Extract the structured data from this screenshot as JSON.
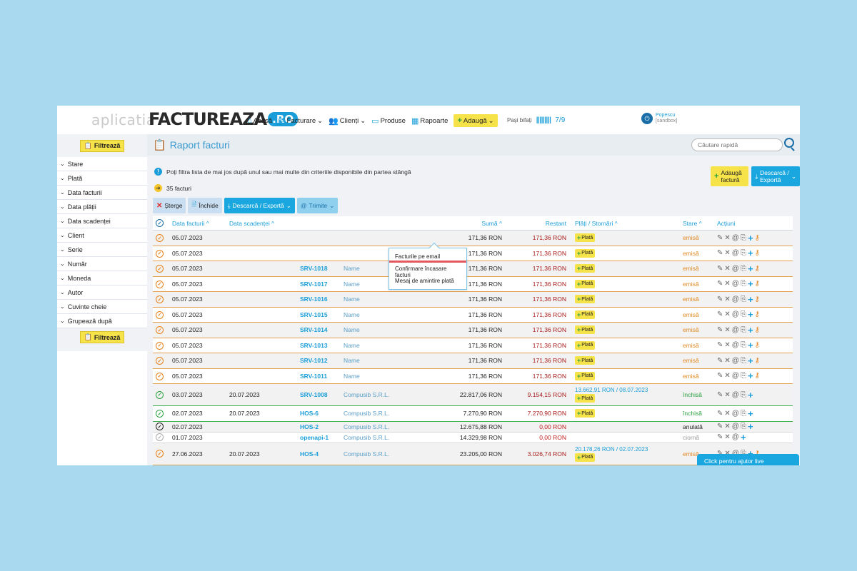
{
  "brand": {
    "alt": "aplicatia",
    "main": "FACTUREAZA",
    "suffix": ".RO"
  },
  "nav": {
    "home": "Acasă",
    "invoices": "Facturare",
    "clients": "Clienți",
    "products": "Produse",
    "reports": "Rapoarte",
    "add": "Adaugă"
  },
  "steps": {
    "label": "Pași bifați",
    "bars": "|||||||||",
    "count": "7/9"
  },
  "user": {
    "name": "Popescu",
    "sub": "[sandbox]"
  },
  "sidebar": {
    "filter_label": "Filtrează",
    "items": [
      "Stare",
      "Plată",
      "Data facturii",
      "Data plății",
      "Data scadenței",
      "Client",
      "Serie",
      "Număr",
      "Moneda",
      "Autor",
      "Cuvinte cheie",
      "Grupează după"
    ]
  },
  "page": {
    "title": "Raport facturi",
    "search_placeholder": "Căutare rapidă",
    "info": "Poți filtra lista de mai jos după unul sau mai multe din criteriile disponibile din partea stângă",
    "count": "35 facturi",
    "add_invoice": "Adaugă factură",
    "download_export": "Descarcă / Exportă"
  },
  "toolbar": {
    "delete": "Șterge",
    "close": "Închide",
    "download": "Descarcă / Exportă",
    "send": "Trimite"
  },
  "dropdown": [
    "Facturile pe email",
    "Confirmare încasare facturi",
    "Mesaj de amintire plată"
  ],
  "table": {
    "headers": {
      "invoice_date": "Data facturii",
      "due_date": "Data scadenței",
      "amount": "Sumă",
      "remaining": "Restant",
      "payments": "Plăți / Stornări",
      "status": "Stare",
      "actions": "Acțiuni"
    },
    "pay_label": "Plată",
    "rows": [
      {
        "date": "05.07.2023",
        "due": "",
        "series": "",
        "client": "",
        "amount": "171,36 RON",
        "remaining": "171,36 RON",
        "payment": "",
        "status": "emisă",
        "kind": "orange"
      },
      {
        "date": "05.07.2023",
        "due": "",
        "series": "",
        "client": "",
        "amount": "171,36 RON",
        "remaining": "171,36 RON",
        "payment": "",
        "status": "emisă",
        "kind": "orange"
      },
      {
        "date": "05.07.2023",
        "due": "",
        "series": "SRV-1018",
        "client": "Name",
        "amount": "171,36 RON",
        "remaining": "171,36 RON",
        "payment": "",
        "status": "emisă",
        "kind": "orange"
      },
      {
        "date": "05.07.2023",
        "due": "",
        "series": "SRV-1017",
        "client": "Name",
        "amount": "171,36 RON",
        "remaining": "171,36 RON",
        "payment": "",
        "status": "emisă",
        "kind": "orange"
      },
      {
        "date": "05.07.2023",
        "due": "",
        "series": "SRV-1016",
        "client": "Name",
        "amount": "171,36 RON",
        "remaining": "171,36 RON",
        "payment": "",
        "status": "emisă",
        "kind": "orange"
      },
      {
        "date": "05.07.2023",
        "due": "",
        "series": "SRV-1015",
        "client": "Name",
        "amount": "171,36 RON",
        "remaining": "171,36 RON",
        "payment": "",
        "status": "emisă",
        "kind": "orange"
      },
      {
        "date": "05.07.2023",
        "due": "",
        "series": "SRV-1014",
        "client": "Name",
        "amount": "171,36 RON",
        "remaining": "171,36 RON",
        "payment": "",
        "status": "emisă",
        "kind": "orange"
      },
      {
        "date": "05.07.2023",
        "due": "",
        "series": "SRV-1013",
        "client": "Name",
        "amount": "171,36 RON",
        "remaining": "171,36 RON",
        "payment": "",
        "status": "emisă",
        "kind": "orange"
      },
      {
        "date": "05.07.2023",
        "due": "",
        "series": "SRV-1012",
        "client": "Name",
        "amount": "171,36 RON",
        "remaining": "171,36 RON",
        "payment": "",
        "status": "emisă",
        "kind": "orange"
      },
      {
        "date": "05.07.2023",
        "due": "",
        "series": "SRV-1011",
        "client": "Name",
        "amount": "171,36 RON",
        "remaining": "171,36 RON",
        "payment": "",
        "status": "emisă",
        "kind": "orange"
      },
      {
        "date": "03.07.2023",
        "due": "20.07.2023",
        "series": "SRV-1008",
        "client": "Compusib S.R.L.",
        "amount": "22.817,06 RON",
        "remaining": "9.154,15 RON",
        "payment": "13.662,91 RON / 08.07.2023",
        "status": "închisă",
        "kind": "green"
      },
      {
        "date": "02.07.2023",
        "due": "20.07.2023",
        "series": "HOS-6",
        "client": "Compusib S.R.L.",
        "amount": "7.270,90 RON",
        "remaining": "7.270,90 RON",
        "payment": "",
        "status": "închisă",
        "kind": "green"
      },
      {
        "date": "02.07.2023",
        "due": "",
        "series": "HOS-2",
        "client": "Compusib S.R.L.",
        "amount": "12.675,88 RON",
        "remaining": "0,00 RON",
        "payment": "",
        "status": "anulată",
        "kind": "dark"
      },
      {
        "date": "01.07.2023",
        "due": "",
        "series": "openapi-1",
        "client": "Compusib S.R.L.",
        "amount": "14.329,98 RON",
        "remaining": "0,00 RON",
        "payment": "",
        "status": "ciornă",
        "kind": "lgray"
      },
      {
        "date": "27.06.2023",
        "due": "20.07.2023",
        "series": "HOS-4",
        "client": "Compusib S.R.L.",
        "amount": "23.205,00 RON",
        "remaining": "3.026,74 RON",
        "payment": "20.178,26 RON / 02.07.2023",
        "status": "emisă",
        "kind": "orange"
      }
    ]
  },
  "help": "Click pentru ajutor live"
}
